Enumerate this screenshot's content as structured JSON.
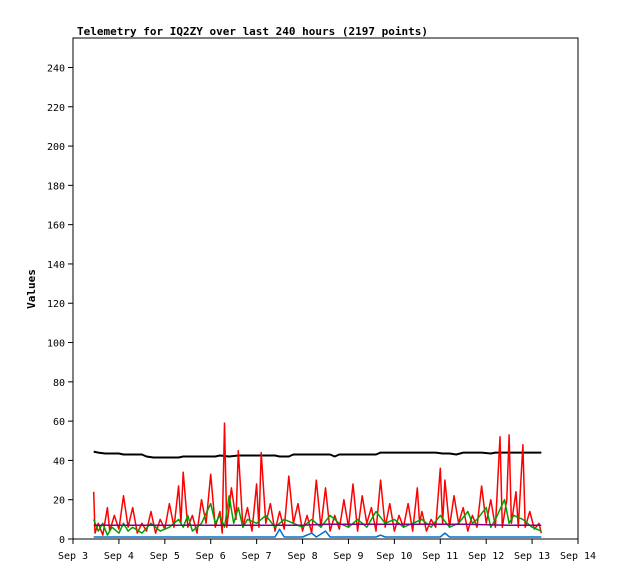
{
  "chart_data": {
    "type": "line",
    "title": "Telemetry for IQ2ZY over last 240 hours (2197 points)",
    "xlabel": "",
    "ylabel": "Values",
    "x_ticks": [
      "Sep 3",
      "Sep 4",
      "Sep 5",
      "Sep 6",
      "Sep 7",
      "Sep 8",
      "Sep 9",
      "Sep 10",
      "Sep 11",
      "Sep 12",
      "Sep 13",
      "Sep 14"
    ],
    "xlim": [
      0,
      11
    ],
    "ylim": [
      0,
      255
    ],
    "y_ticks": [
      0,
      20,
      40,
      60,
      80,
      100,
      120,
      140,
      160,
      180,
      200,
      220,
      240
    ],
    "grid": false,
    "series": [
      {
        "color": "#000000",
        "points": [
          [
            0.45,
            44.5
          ],
          [
            0.55,
            44
          ],
          [
            0.7,
            43.5
          ],
          [
            1.0,
            43.5
          ],
          [
            1.1,
            43
          ],
          [
            1.3,
            43
          ],
          [
            1.5,
            43
          ],
          [
            1.6,
            42
          ],
          [
            1.75,
            41.5
          ],
          [
            2.0,
            41.5
          ],
          [
            2.3,
            41.5
          ],
          [
            2.4,
            42
          ],
          [
            2.8,
            42
          ],
          [
            3.1,
            42
          ],
          [
            3.2,
            42.5
          ],
          [
            3.4,
            42
          ],
          [
            3.6,
            42.5
          ],
          [
            4.0,
            42.5
          ],
          [
            4.4,
            42.5
          ],
          [
            4.5,
            42
          ],
          [
            4.7,
            42
          ],
          [
            4.8,
            43
          ],
          [
            5.2,
            43
          ],
          [
            5.6,
            43
          ],
          [
            5.7,
            42
          ],
          [
            5.8,
            43
          ],
          [
            6.2,
            43
          ],
          [
            6.6,
            43
          ],
          [
            6.7,
            44
          ],
          [
            7.3,
            44
          ],
          [
            7.9,
            44
          ],
          [
            8.05,
            43.5
          ],
          [
            8.2,
            43.5
          ],
          [
            8.35,
            43
          ],
          [
            8.5,
            44
          ],
          [
            8.9,
            44
          ],
          [
            9.1,
            43.5
          ],
          [
            9.2,
            44
          ],
          [
            9.7,
            44
          ],
          [
            10.0,
            44
          ],
          [
            10.1,
            44
          ],
          [
            10.2,
            44
          ]
        ]
      },
      {
        "color": "#ff0000",
        "points": [
          [
            0.45,
            24
          ],
          [
            0.48,
            3
          ],
          [
            0.55,
            8
          ],
          [
            0.65,
            2
          ],
          [
            0.75,
            16
          ],
          [
            0.8,
            4
          ],
          [
            0.9,
            12
          ],
          [
            1.0,
            5
          ],
          [
            1.1,
            22
          ],
          [
            1.2,
            6
          ],
          [
            1.3,
            16
          ],
          [
            1.4,
            3
          ],
          [
            1.5,
            8
          ],
          [
            1.6,
            4
          ],
          [
            1.7,
            14
          ],
          [
            1.8,
            3
          ],
          [
            1.9,
            10
          ],
          [
            2.0,
            5
          ],
          [
            2.1,
            18
          ],
          [
            2.2,
            6
          ],
          [
            2.3,
            27
          ],
          [
            2.35,
            8
          ],
          [
            2.4,
            34
          ],
          [
            2.5,
            6
          ],
          [
            2.6,
            12
          ],
          [
            2.7,
            3
          ],
          [
            2.8,
            20
          ],
          [
            2.9,
            8
          ],
          [
            3.0,
            33
          ],
          [
            3.1,
            6
          ],
          [
            3.2,
            14
          ],
          [
            3.25,
            3
          ],
          [
            3.3,
            59
          ],
          [
            3.35,
            6
          ],
          [
            3.45,
            26
          ],
          [
            3.55,
            10
          ],
          [
            3.6,
            45
          ],
          [
            3.7,
            6
          ],
          [
            3.8,
            16
          ],
          [
            3.9,
            4
          ],
          [
            4.0,
            28
          ],
          [
            4.05,
            6
          ],
          [
            4.1,
            44
          ],
          [
            4.2,
            8
          ],
          [
            4.3,
            18
          ],
          [
            4.4,
            4
          ],
          [
            4.5,
            14
          ],
          [
            4.6,
            5
          ],
          [
            4.7,
            32
          ],
          [
            4.8,
            8
          ],
          [
            4.9,
            18
          ],
          [
            5.0,
            4
          ],
          [
            5.1,
            12
          ],
          [
            5.2,
            3
          ],
          [
            5.3,
            30
          ],
          [
            5.4,
            6
          ],
          [
            5.5,
            26
          ],
          [
            5.6,
            4
          ],
          [
            5.7,
            12
          ],
          [
            5.8,
            5
          ],
          [
            5.9,
            20
          ],
          [
            6.0,
            6
          ],
          [
            6.1,
            28
          ],
          [
            6.2,
            4
          ],
          [
            6.3,
            22
          ],
          [
            6.4,
            8
          ],
          [
            6.5,
            16
          ],
          [
            6.6,
            4
          ],
          [
            6.7,
            30
          ],
          [
            6.8,
            6
          ],
          [
            6.9,
            18
          ],
          [
            7.0,
            4
          ],
          [
            7.1,
            12
          ],
          [
            7.2,
            6
          ],
          [
            7.3,
            18
          ],
          [
            7.4,
            4
          ],
          [
            7.5,
            26
          ],
          [
            7.55,
            8
          ],
          [
            7.6,
            14
          ],
          [
            7.7,
            4
          ],
          [
            7.8,
            10
          ],
          [
            7.9,
            6
          ],
          [
            8.0,
            36
          ],
          [
            8.05,
            8
          ],
          [
            8.1,
            30
          ],
          [
            8.2,
            6
          ],
          [
            8.3,
            22
          ],
          [
            8.4,
            8
          ],
          [
            8.5,
            16
          ],
          [
            8.6,
            4
          ],
          [
            8.7,
            12
          ],
          [
            8.8,
            6
          ],
          [
            8.9,
            27
          ],
          [
            9.0,
            8
          ],
          [
            9.1,
            20
          ],
          [
            9.2,
            6
          ],
          [
            9.3,
            52
          ],
          [
            9.35,
            6
          ],
          [
            9.45,
            20
          ],
          [
            9.5,
            53
          ],
          [
            9.55,
            8
          ],
          [
            9.65,
            24
          ],
          [
            9.7,
            6
          ],
          [
            9.8,
            48
          ],
          [
            9.85,
            6
          ],
          [
            9.95,
            14
          ],
          [
            10.05,
            5
          ],
          [
            10.15,
            8
          ],
          [
            10.2,
            3
          ]
        ]
      },
      {
        "color": "#00a000",
        "points": [
          [
            0.45,
            10
          ],
          [
            0.55,
            4
          ],
          [
            0.65,
            8
          ],
          [
            0.75,
            2
          ],
          [
            0.85,
            6
          ],
          [
            1.0,
            3
          ],
          [
            1.1,
            8
          ],
          [
            1.2,
            4
          ],
          [
            1.3,
            6
          ],
          [
            1.5,
            3
          ],
          [
            1.7,
            8
          ],
          [
            1.9,
            4
          ],
          [
            2.1,
            6
          ],
          [
            2.3,
            10
          ],
          [
            2.4,
            6
          ],
          [
            2.5,
            12
          ],
          [
            2.6,
            4
          ],
          [
            2.8,
            8
          ],
          [
            3.0,
            18
          ],
          [
            3.1,
            8
          ],
          [
            3.2,
            12
          ],
          [
            3.3,
            6
          ],
          [
            3.4,
            22
          ],
          [
            3.5,
            8
          ],
          [
            3.6,
            16
          ],
          [
            3.7,
            6
          ],
          [
            3.8,
            10
          ],
          [
            4.0,
            8
          ],
          [
            4.2,
            12
          ],
          [
            4.4,
            6
          ],
          [
            4.6,
            10
          ],
          [
            4.8,
            8
          ],
          [
            5.0,
            6
          ],
          [
            5.2,
            10
          ],
          [
            5.4,
            6
          ],
          [
            5.6,
            12
          ],
          [
            5.8,
            8
          ],
          [
            6.0,
            6
          ],
          [
            6.2,
            10
          ],
          [
            6.4,
            6
          ],
          [
            6.6,
            14
          ],
          [
            6.8,
            8
          ],
          [
            7.0,
            10
          ],
          [
            7.2,
            6
          ],
          [
            7.4,
            8
          ],
          [
            7.6,
            10
          ],
          [
            7.8,
            6
          ],
          [
            8.0,
            12
          ],
          [
            8.2,
            6
          ],
          [
            8.4,
            8
          ],
          [
            8.6,
            14
          ],
          [
            8.7,
            8
          ],
          [
            8.8,
            10
          ],
          [
            9.0,
            16
          ],
          [
            9.1,
            6
          ],
          [
            9.2,
            10
          ],
          [
            9.4,
            20
          ],
          [
            9.5,
            8
          ],
          [
            9.6,
            12
          ],
          [
            9.8,
            10
          ],
          [
            10.0,
            6
          ],
          [
            10.2,
            4
          ]
        ]
      },
      {
        "color": "#800080",
        "points": [
          [
            0.45,
            7
          ],
          [
            1.0,
            7
          ],
          [
            2.0,
            7
          ],
          [
            3.0,
            7
          ],
          [
            4.0,
            7
          ],
          [
            5.0,
            7
          ],
          [
            5.5,
            7.5
          ],
          [
            6.5,
            7.5
          ],
          [
            7.5,
            7.5
          ],
          [
            8.5,
            7.5
          ],
          [
            9.5,
            7
          ],
          [
            10.2,
            7
          ]
        ]
      },
      {
        "color": "#0070d0",
        "points": [
          [
            0.45,
            1
          ],
          [
            2.0,
            1
          ],
          [
            4.4,
            1
          ],
          [
            4.5,
            5
          ],
          [
            4.6,
            1
          ],
          [
            5.0,
            1
          ],
          [
            5.2,
            3
          ],
          [
            5.3,
            1
          ],
          [
            5.5,
            4
          ],
          [
            5.6,
            1
          ],
          [
            6.6,
            1
          ],
          [
            6.7,
            2
          ],
          [
            6.8,
            1
          ],
          [
            8.0,
            1
          ],
          [
            8.1,
            3
          ],
          [
            8.2,
            1
          ],
          [
            9.0,
            1
          ],
          [
            10.2,
            1
          ]
        ]
      }
    ]
  }
}
